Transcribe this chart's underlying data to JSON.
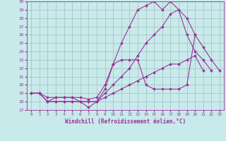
{
  "xlabel": "Windchill (Refroidissement éolien,°C)",
  "ylabel": "",
  "xlim": [
    -0.5,
    23.5
  ],
  "ylim": [
    17,
    30
  ],
  "yticks": [
    17,
    18,
    19,
    20,
    21,
    22,
    23,
    24,
    25,
    26,
    27,
    28,
    29,
    30
  ],
  "xticks": [
    0,
    1,
    2,
    3,
    4,
    5,
    6,
    7,
    8,
    9,
    10,
    11,
    12,
    13,
    14,
    15,
    16,
    17,
    18,
    19,
    20,
    21,
    22,
    23
  ],
  "bg_color": "#c8eaea",
  "grid_color": "#a0c0c0",
  "line_color": "#993399",
  "series": [
    {
      "x": [
        0,
        1,
        2,
        3,
        4,
        5,
        6,
        7,
        8,
        9,
        10,
        11,
        12,
        13,
        14,
        15,
        16,
        17,
        18,
        19,
        20,
        21,
        22
      ],
      "y": [
        19,
        19,
        18,
        18.5,
        18.5,
        18.5,
        18,
        17.3,
        18,
        19.5,
        22.5,
        25,
        27,
        29,
        29.5,
        30,
        29,
        30,
        29,
        26,
        24,
        23,
        21.7
      ]
    },
    {
      "x": [
        0,
        1,
        2,
        3,
        4,
        5,
        6,
        7,
        8,
        9,
        10,
        11,
        12,
        13,
        14,
        15,
        16,
        17,
        18,
        19,
        20
      ],
      "y": [
        19,
        19,
        18.5,
        18.5,
        18.5,
        18.5,
        18.5,
        18.3,
        18.5,
        20,
        22.5,
        23,
        23,
        23,
        20,
        19.5,
        19.5,
        19.5,
        19.5,
        20,
        26
      ]
    },
    {
      "x": [
        0,
        1,
        2,
        3,
        4,
        5,
        6,
        7,
        8,
        9,
        10,
        11,
        12,
        13,
        14,
        15,
        16,
        17,
        18,
        19,
        20,
        21
      ],
      "y": [
        19,
        19,
        18,
        18,
        18,
        18,
        18,
        18,
        18,
        18.5,
        19,
        19.5,
        20,
        20.5,
        21,
        21.5,
        22,
        22.5,
        22.5,
        23,
        23.5,
        21.7
      ]
    },
    {
      "x": [
        0,
        1,
        2,
        3,
        4,
        5,
        6,
        7,
        8,
        9,
        10,
        11,
        12,
        13,
        14,
        15,
        16,
        17,
        18,
        19,
        20,
        21,
        22,
        23
      ],
      "y": [
        19,
        19,
        18,
        18,
        18,
        18,
        18,
        18,
        18,
        19,
        20,
        21,
        22,
        23.5,
        25,
        26,
        27,
        28.5,
        29,
        28,
        26,
        24.5,
        23,
        21.7
      ]
    }
  ]
}
